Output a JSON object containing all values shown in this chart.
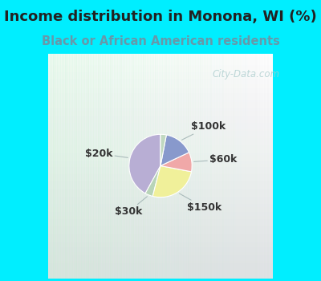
{
  "title": "Income distribution in Monona, WI (%)",
  "subtitle": "Black or African American residents",
  "slices": [
    {
      "label": "$20k",
      "value": 42,
      "color": "#b8aed4"
    },
    {
      "label": "$30k",
      "value": 4,
      "color": "#b8d4b8"
    },
    {
      "label": "$150k",
      "value": 26,
      "color": "#f0f09a"
    },
    {
      "label": "$60k",
      "value": 10,
      "color": "#f0a8a8"
    },
    {
      "label": "$100k",
      "value": 15,
      "color": "#8899cc"
    },
    {
      "label": "",
      "value": 3,
      "color": "#c0d8c0"
    }
  ],
  "startangle": 90,
  "title_color": "#222222",
  "subtitle_color": "#6699aa",
  "title_fontsize": 13,
  "subtitle_fontsize": 10.5,
  "label_fontsize": 9,
  "bg_cyan": "#00eeff",
  "watermark": "City-Data.com",
  "watermark_color": "#aacccc",
  "label_color": "#333333"
}
